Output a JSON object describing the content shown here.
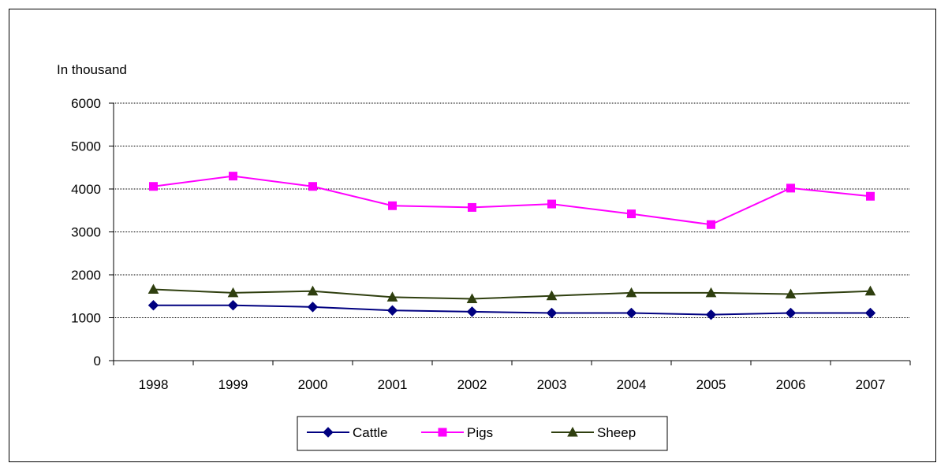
{
  "chart_data": {
    "type": "line",
    "ylabel": "In thousand",
    "categories": [
      "1998",
      "1999",
      "2000",
      "2001",
      "2002",
      "2003",
      "2004",
      "2005",
      "2006",
      "2007"
    ],
    "ylim": [
      0,
      6000
    ],
    "yticks": [
      0,
      1000,
      2000,
      3000,
      4000,
      5000,
      6000
    ],
    "grid": true,
    "legend_position": "bottom",
    "series": [
      {
        "name": "Cattle",
        "color": "#000080",
        "marker": "diamond",
        "values": [
          1290,
          1290,
          1250,
          1170,
          1140,
          1110,
          1110,
          1070,
          1110,
          1110
        ]
      },
      {
        "name": "Pigs",
        "color": "#FF00FF",
        "marker": "square",
        "values": [
          4060,
          4300,
          4060,
          3610,
          3570,
          3650,
          3420,
          3170,
          4020,
          3830
        ]
      },
      {
        "name": "Sheep",
        "color": "#2F3F0F",
        "marker": "triangle",
        "values": [
          1660,
          1580,
          1620,
          1480,
          1440,
          1510,
          1580,
          1580,
          1550,
          1620
        ]
      }
    ]
  }
}
